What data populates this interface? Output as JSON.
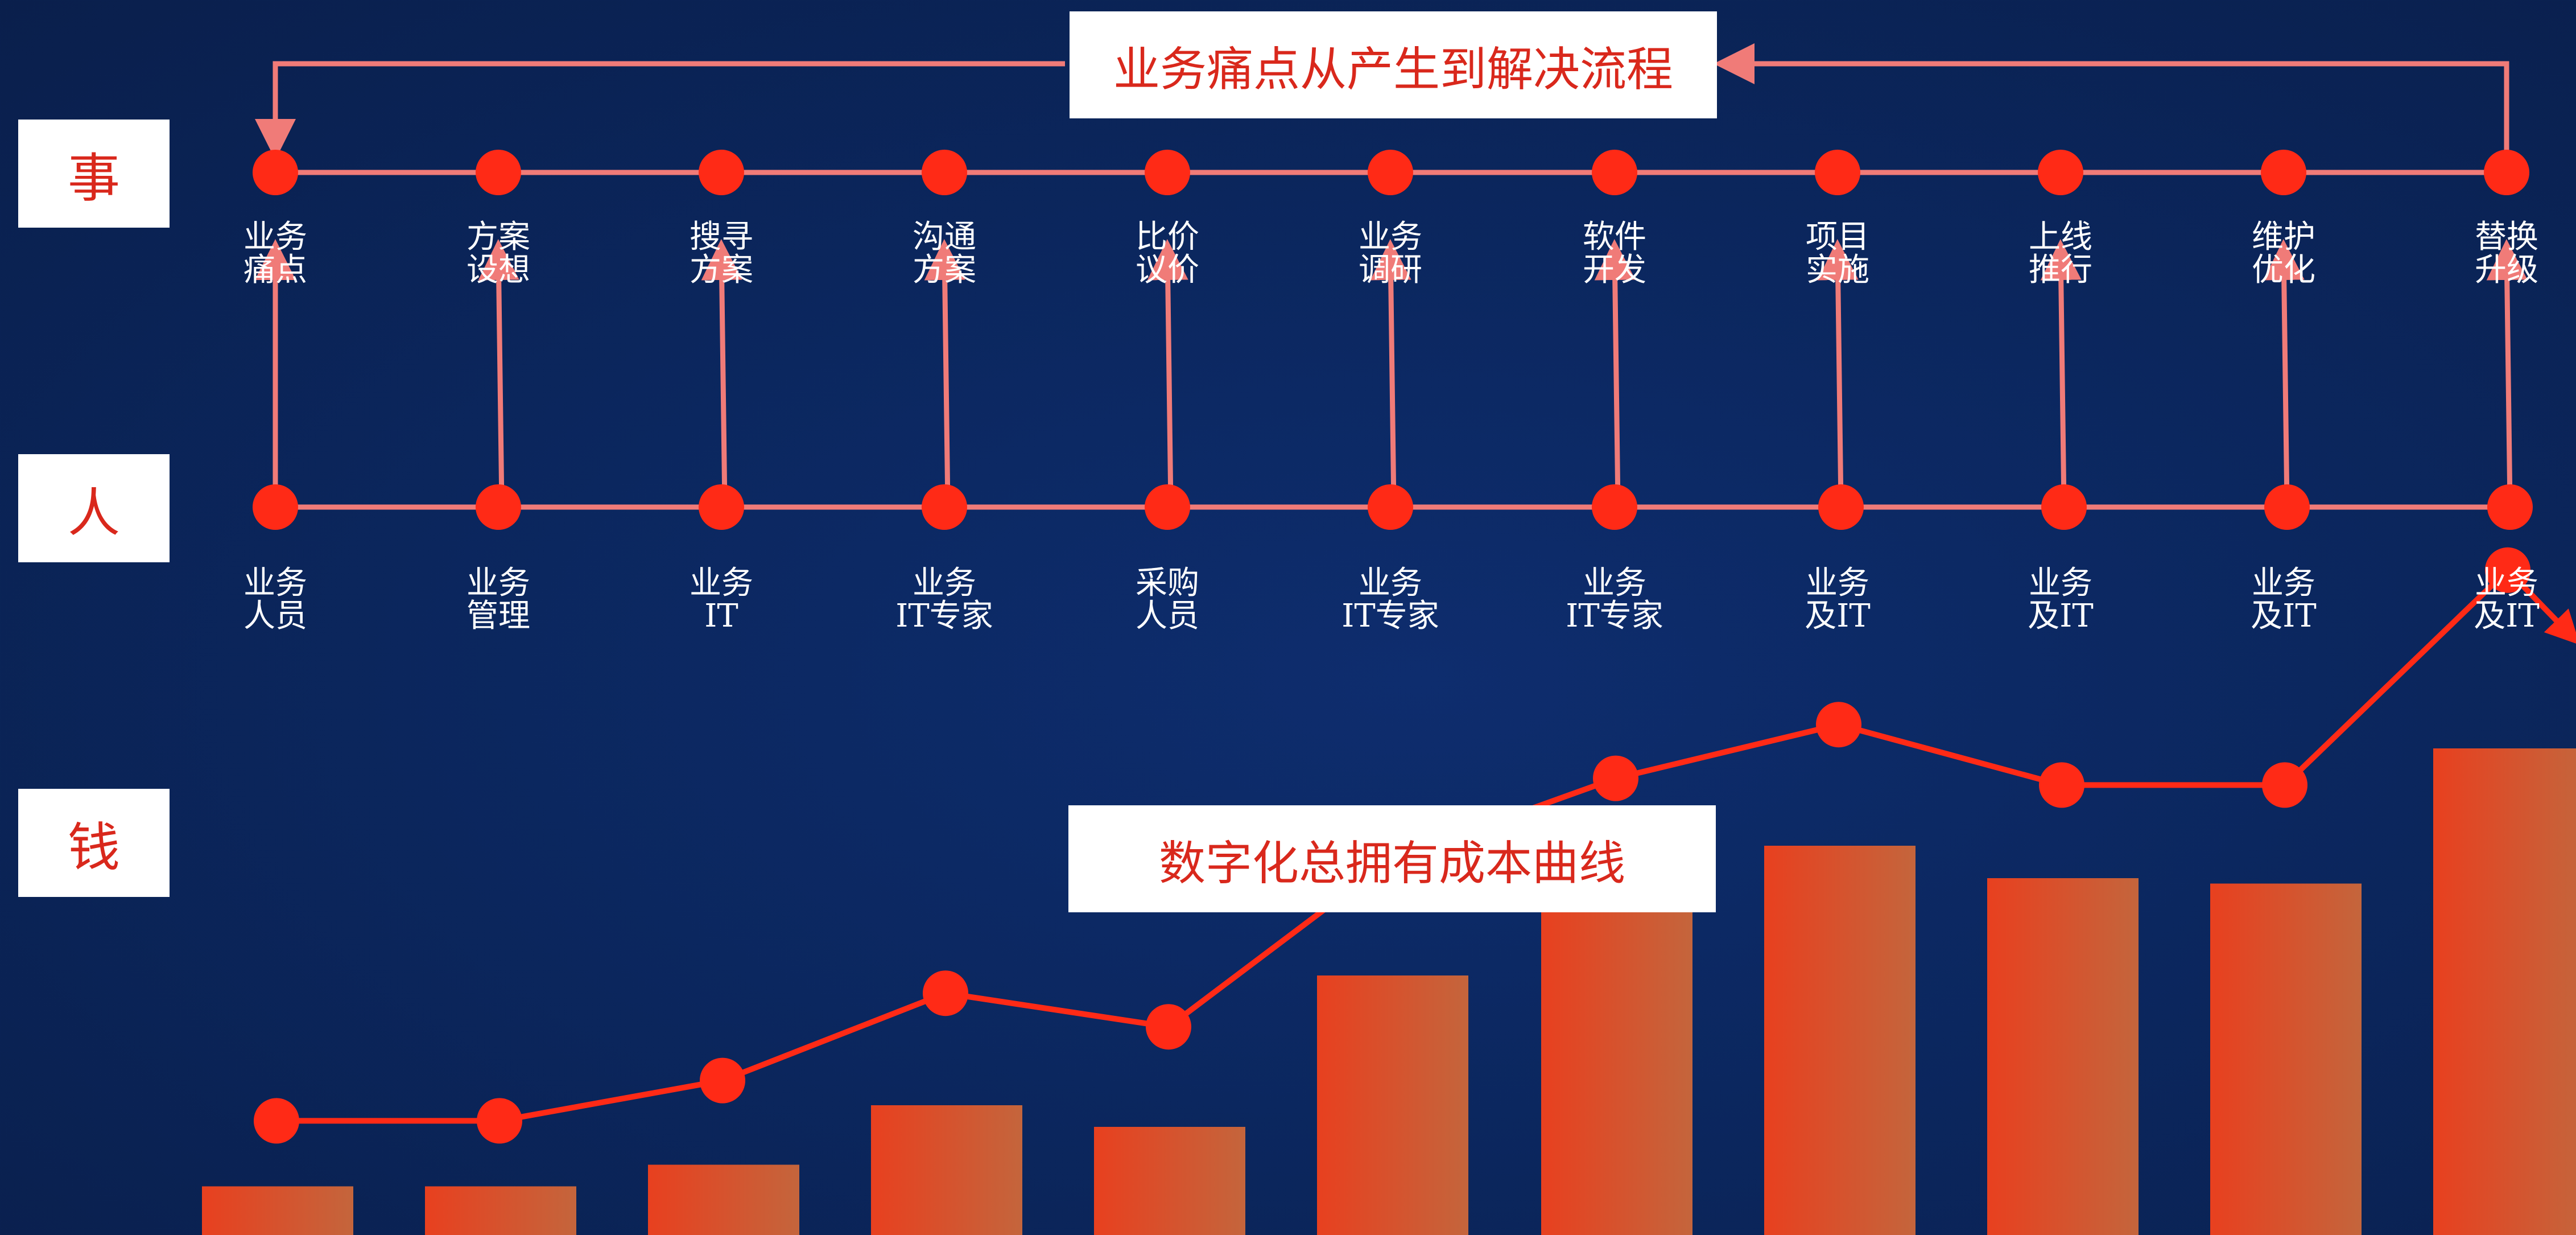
{
  "top_title": "业务痛点从产生到解决流程",
  "bottom_title": "数字化总拥有成本曲线",
  "row_labels": {
    "event": "事",
    "people": "人",
    "money": "钱"
  },
  "colors": {
    "background": "#0b275f",
    "flow_line": "#f07b78",
    "node": "#ff2a16",
    "cost_line": "#ff2a16",
    "bar_left": "#e8401f",
    "bar_right": "#c4653c",
    "label_text": "#d9281c"
  },
  "event_steps": [
    {
      "line1": "业务",
      "line2": "痛点"
    },
    {
      "line1": "方案",
      "line2": "设想"
    },
    {
      "line1": "搜寻",
      "line2": "方案"
    },
    {
      "line1": "沟通",
      "line2": "方案"
    },
    {
      "line1": "比价",
      "line2": "议价"
    },
    {
      "line1": "业务",
      "line2": "调研"
    },
    {
      "line1": "软件",
      "line2": "开发"
    },
    {
      "line1": "项目",
      "line2": "实施"
    },
    {
      "line1": "上线",
      "line2": "推行"
    },
    {
      "line1": "维护",
      "line2": "优化"
    },
    {
      "line1": "替换",
      "line2": "升级"
    }
  ],
  "people_roles": [
    {
      "line1": "业务",
      "line2": "人员"
    },
    {
      "line1": "业务",
      "line2": "管理"
    },
    {
      "line1": "业务",
      "line2": "IT"
    },
    {
      "line1": "业务",
      "line2": "IT专家"
    },
    {
      "line1": "采购",
      "line2": "人员"
    },
    {
      "line1": "业务",
      "line2": "IT专家"
    },
    {
      "line1": "业务",
      "line2": "IT专家"
    },
    {
      "line1": "业务",
      "line2": "及IT"
    },
    {
      "line1": "业务",
      "line2": "及IT"
    },
    {
      "line1": "业务",
      "line2": "及IT"
    },
    {
      "line1": "业务",
      "line2": "及IT"
    }
  ],
  "cost_curve": {
    "bar_levels": [
      0.09,
      0.09,
      0.13,
      0.24,
      0.2,
      0.48,
      0.6,
      0.72,
      0.66,
      0.65,
      0.9
    ],
    "line_levels": [
      0.17,
      0.17,
      0.23,
      0.36,
      0.31,
      0.56,
      0.68,
      0.76,
      0.67,
      0.67,
      0.99
    ]
  }
}
